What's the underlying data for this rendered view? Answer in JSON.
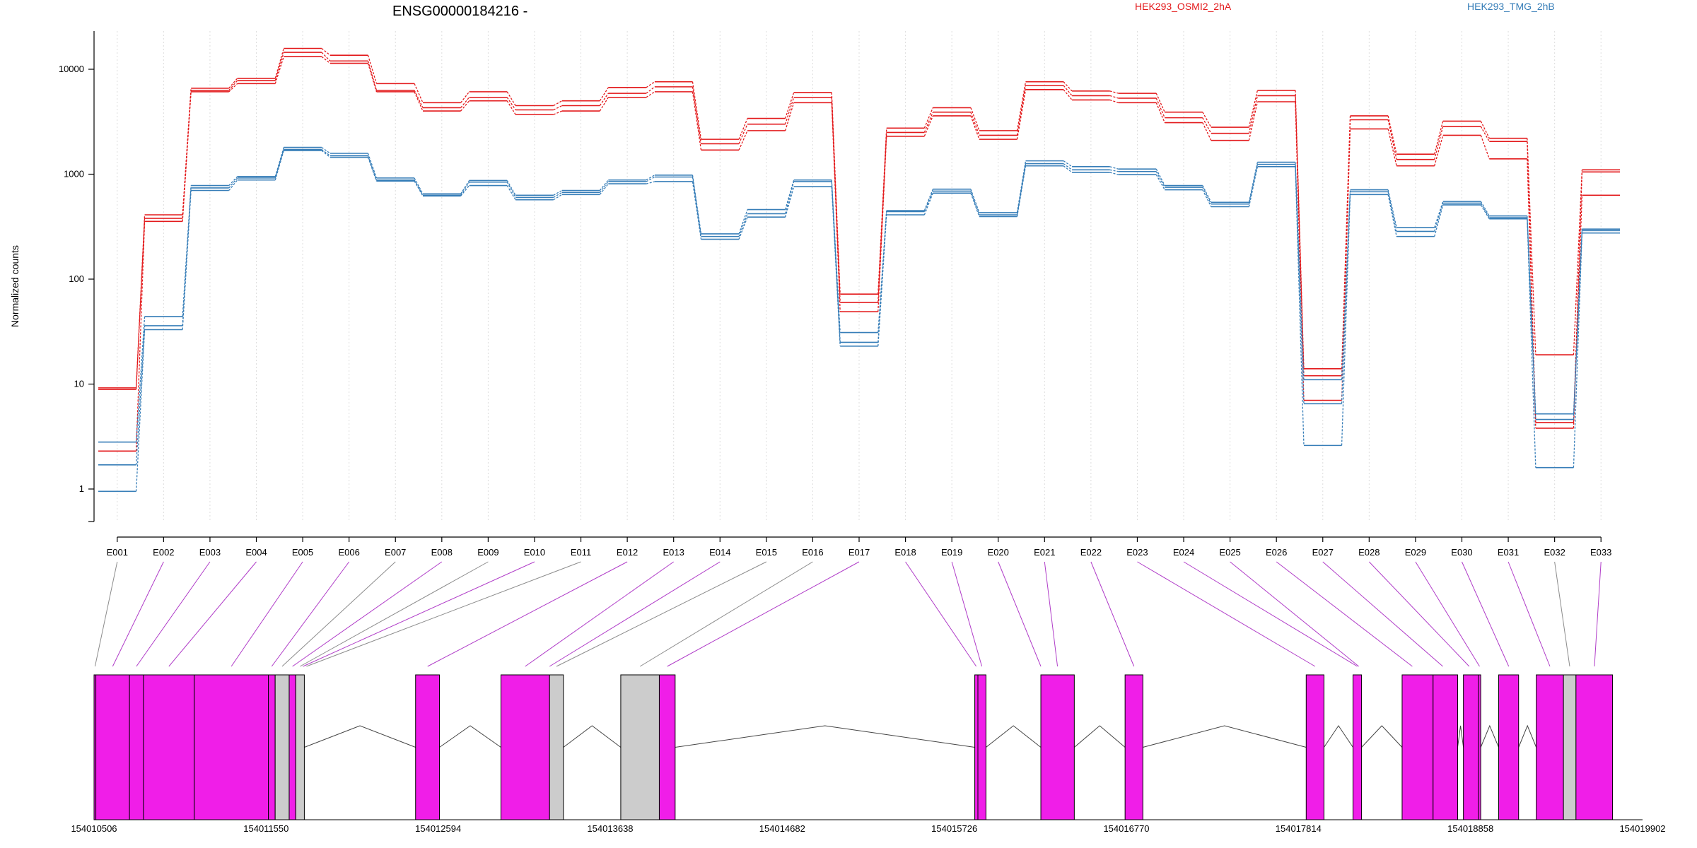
{
  "chart_data": {
    "type": "line",
    "title": "ENSG00000184216 -",
    "ylabel": "Normalized counts",
    "xlabel": "",
    "yscale": "log",
    "ylim": [
      0.6,
      24000
    ],
    "ytick_values": [
      1,
      10,
      100,
      1000,
      10000
    ],
    "ytick_labels": [
      "1",
      "10",
      "100",
      "1000",
      "10000"
    ],
    "grid": "vertical dotted at exon centers",
    "legend": {
      "placement": "top"
    },
    "colors": {
      "OSMI2": "#e31a1c",
      "TMG": "#377eb8",
      "exon_tested": "#f01ee8",
      "exon_untested": "#cccccc",
      "connector_tested": "#b03cc8",
      "connector_untested": "#8c8c8c"
    },
    "categories": [
      "E001",
      "E002",
      "E003",
      "E004",
      "E005",
      "E006",
      "E007",
      "E008",
      "E009",
      "E010",
      "E011",
      "E012",
      "E013",
      "E014",
      "E015",
      "E016",
      "E017",
      "E018",
      "E019",
      "E020",
      "E021",
      "E022",
      "E023",
      "E024",
      "E025",
      "E026",
      "E027",
      "E028",
      "E029",
      "E030",
      "E031",
      "E032",
      "E033"
    ],
    "series": [
      {
        "name": "HEK293_OSMI2_2hA",
        "group": "OSMI2",
        "values": [
          9.2,
          410,
          6600,
          8200,
          15800,
          13600,
          7300,
          4800,
          6100,
          4500,
          5000,
          6700,
          7600,
          2150,
          3400,
          6000,
          72,
          2750,
          4300,
          2600,
          7600,
          6200,
          5900,
          3900,
          2800,
          6300,
          14,
          3600,
          1550,
          3200,
          2200,
          19,
          1100
        ]
      },
      {
        "name": "HEK293_OSMI2_2hA",
        "group": "OSMI2",
        "values": [
          8.9,
          380,
          6300,
          7800,
          14500,
          12000,
          6300,
          4300,
          5400,
          4100,
          4500,
          5900,
          6800,
          1950,
          3000,
          5400,
          60,
          2500,
          3900,
          2350,
          7000,
          5600,
          5300,
          3450,
          2450,
          5600,
          12,
          3300,
          1380,
          2850,
          2050,
          4.3,
          1050
        ]
      },
      {
        "name": "HEK293_OSMI2_2hA",
        "group": "OSMI2",
        "values": [
          2.3,
          355,
          6100,
          7300,
          13200,
          11400,
          6100,
          4000,
          5000,
          3700,
          4000,
          5400,
          6100,
          1700,
          2600,
          4800,
          49,
          2300,
          3600,
          2150,
          6400,
          5100,
          4800,
          3100,
          2100,
          4900,
          7,
          2700,
          1200,
          2350,
          1400,
          3.8,
          630
        ]
      },
      {
        "name": "HEK293_TMG_2hB",
        "group": "TMG",
        "values": [
          2.8,
          44,
          780,
          950,
          1800,
          1580,
          920,
          650,
          870,
          630,
          700,
          880,
          980,
          270,
          460,
          880,
          31,
          450,
          720,
          430,
          1340,
          1180,
          1120,
          780,
          540,
          1300,
          11,
          710,
          310,
          550,
          400,
          5.2,
          300
        ]
      },
      {
        "name": "HEK293_TMG_2hB",
        "group": "TMG",
        "values": [
          1.7,
          36,
          740,
          920,
          1720,
          1500,
          880,
          630,
          840,
          600,
          670,
          850,
          940,
          255,
          420,
          850,
          25,
          440,
          690,
          410,
          1260,
          1100,
          1060,
          750,
          520,
          1240,
          6.5,
          680,
          285,
          530,
          385,
          4.6,
          290
        ]
      },
      {
        "name": "HEK293_TMG_2hB",
        "group": "TMG",
        "values": [
          0.95,
          33,
          700,
          880,
          1680,
          1450,
          860,
          620,
          780,
          570,
          640,
          810,
          850,
          240,
          390,
          760,
          23,
          410,
          660,
          395,
          1200,
          1040,
          990,
          710,
          490,
          1180,
          2.6,
          640,
          255,
          510,
          375,
          1.6,
          275
        ]
      }
    ],
    "gene_model": {
      "coord_start": 154010506,
      "coord_end": 154019902,
      "tick_labels": [
        "154010506",
        "154011550",
        "154012594",
        "154013638",
        "154014682",
        "154015726",
        "154016770",
        "154017814",
        "154018858",
        "154019902"
      ],
      "exons": [
        {
          "start": 154010506,
          "end": 154010517,
          "tested": true
        },
        {
          "start": 154010517,
          "end": 154010721,
          "tested": true
        },
        {
          "start": 154010721,
          "end": 154010806,
          "tested": true
        },
        {
          "start": 154010806,
          "end": 154011114,
          "tested": true
        },
        {
          "start": 154011114,
          "end": 154011564,
          "tested": true
        },
        {
          "start": 154011564,
          "end": 154011605,
          "tested": true
        },
        {
          "start": 154011605,
          "end": 154011690,
          "tested": false
        },
        {
          "start": 154011690,
          "end": 154011730,
          "tested": true
        },
        {
          "start": 154011730,
          "end": 154011782,
          "tested": false
        },
        {
          "start": 154012457,
          "end": 154012602,
          "tested": true
        },
        {
          "start": 154012975,
          "end": 154013270,
          "tested": true
        },
        {
          "start": 154013270,
          "end": 154013354,
          "tested": false
        },
        {
          "start": 154013702,
          "end": 154013936,
          "tested": false
        },
        {
          "start": 154013936,
          "end": 154014032,
          "tested": true
        },
        {
          "start": 154015850,
          "end": 154015869,
          "tested": true
        },
        {
          "start": 154015869,
          "end": 154015918,
          "tested": true
        },
        {
          "start": 154016251,
          "end": 154016454,
          "tested": true
        },
        {
          "start": 154016762,
          "end": 154016870,
          "tested": true
        },
        {
          "start": 154017861,
          "end": 154017969,
          "tested": true
        },
        {
          "start": 154018145,
          "end": 154018197,
          "tested": true
        },
        {
          "start": 154018443,
          "end": 154018631,
          "tested": true
        },
        {
          "start": 154018631,
          "end": 154018780,
          "tested": true
        },
        {
          "start": 154018815,
          "end": 154018907,
          "tested": true
        },
        {
          "start": 154018907,
          "end": 154018920,
          "tested": true
        },
        {
          "start": 154019029,
          "end": 154019150,
          "tested": true
        },
        {
          "start": 154019257,
          "end": 154019422,
          "tested": true
        },
        {
          "start": 154019422,
          "end": 154019498,
          "tested": false
        },
        {
          "start": 154019498,
          "end": 154019720,
          "tested": true
        }
      ],
      "introns": [
        [
          154011782,
          154012457
        ],
        [
          154012602,
          154012975
        ],
        [
          154013354,
          154013702
        ],
        [
          154014032,
          154015850
        ],
        [
          154015918,
          154016251
        ],
        [
          154016454,
          154016762
        ],
        [
          154016870,
          154017861
        ],
        [
          154017969,
          154018145
        ],
        [
          154018197,
          154018443
        ],
        [
          154018780,
          154018815
        ],
        [
          154018920,
          154019029
        ],
        [
          154019150,
          154019257
        ]
      ],
      "bin_links": [
        {
          "exon": "E001",
          "coord": 154010512,
          "tested": false
        },
        {
          "exon": "E002",
          "coord": 154010619,
          "tested": true
        },
        {
          "exon": "E003",
          "coord": 154010763,
          "tested": true
        },
        {
          "exon": "E004",
          "coord": 154010960,
          "tested": true
        },
        {
          "exon": "E005",
          "coord": 154011339,
          "tested": true
        },
        {
          "exon": "E006",
          "coord": 154011584,
          "tested": true
        },
        {
          "exon": "E007",
          "coord": 154011647,
          "tested": false
        },
        {
          "exon": "E008",
          "coord": 154011710,
          "tested": true
        },
        {
          "exon": "E009",
          "coord": 154011756,
          "tested": false
        },
        {
          "exon": "E010",
          "coord": 154011774,
          "tested": true
        },
        {
          "exon": "E011",
          "coord": 154011795,
          "tested": false
        },
        {
          "exon": "E012",
          "coord": 154012530,
          "tested": true
        },
        {
          "exon": "E013",
          "coord": 154013122,
          "tested": true
        },
        {
          "exon": "E014",
          "coord": 154013270,
          "tested": true
        },
        {
          "exon": "E015",
          "coord": 154013312,
          "tested": false
        },
        {
          "exon": "E016",
          "coord": 154013819,
          "tested": false
        },
        {
          "exon": "E017",
          "coord": 154013984,
          "tested": true
        },
        {
          "exon": "E018",
          "coord": 154015859,
          "tested": true
        },
        {
          "exon": "E019",
          "coord": 154015893,
          "tested": true
        },
        {
          "exon": "E020",
          "coord": 154016251,
          "tested": true
        },
        {
          "exon": "E021",
          "coord": 154016352,
          "tested": true
        },
        {
          "exon": "E022",
          "coord": 154016816,
          "tested": true
        },
        {
          "exon": "E023",
          "coord": 154017915,
          "tested": true
        },
        {
          "exon": "E024",
          "coord": 154018171,
          "tested": true
        },
        {
          "exon": "E025",
          "coord": 154018180,
          "tested": true
        },
        {
          "exon": "E026",
          "coord": 154018505,
          "tested": true
        },
        {
          "exon": "E027",
          "coord": 154018690,
          "tested": true
        },
        {
          "exon": "E028",
          "coord": 154018850,
          "tested": true
        },
        {
          "exon": "E029",
          "coord": 154018913,
          "tested": true
        },
        {
          "exon": "E030",
          "coord": 154019090,
          "tested": true
        },
        {
          "exon": "E031",
          "coord": 154019340,
          "tested": true
        },
        {
          "exon": "E032",
          "coord": 154019460,
          "tested": false
        },
        {
          "exon": "E033",
          "coord": 154019610,
          "tested": true
        }
      ]
    }
  }
}
